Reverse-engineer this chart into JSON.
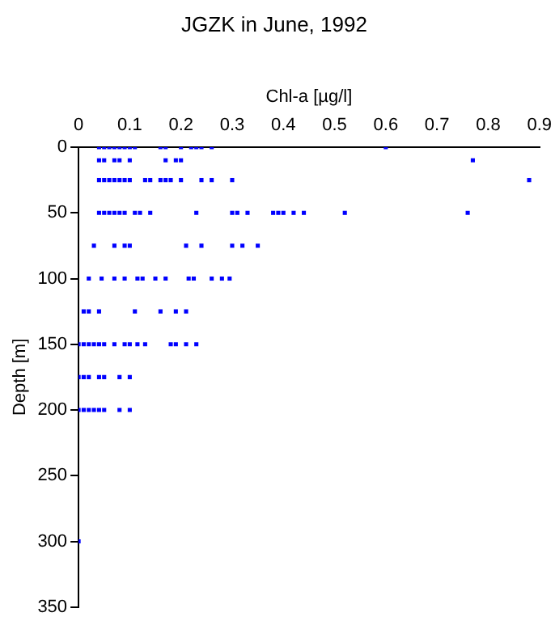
{
  "chart_data": {
    "type": "scatter",
    "title": "JGZK in June, 1992",
    "xlabel": "Chl-a [µg/l]",
    "ylabel": "Depth [m]",
    "color": "#0000ff",
    "marker": "square",
    "grid": false,
    "x": [
      0.04,
      0.05,
      0.06,
      0.07,
      0.08,
      0.09,
      0.1,
      0.11,
      0.16,
      0.17,
      0.2,
      0.22,
      0.23,
      0.24,
      0.26,
      0.6,
      0.04,
      0.05,
      0.07,
      0.08,
      0.1,
      0.17,
      0.19,
      0.2,
      0.77,
      0.04,
      0.05,
      0.06,
      0.07,
      0.08,
      0.09,
      0.1,
      0.13,
      0.14,
      0.16,
      0.17,
      0.18,
      0.2,
      0.24,
      0.26,
      0.3,
      0.88,
      0.04,
      0.05,
      0.06,
      0.07,
      0.08,
      0.09,
      0.11,
      0.12,
      0.14,
      0.23,
      0.3,
      0.31,
      0.33,
      0.38,
      0.39,
      0.4,
      0.42,
      0.44,
      0.52,
      0.76,
      0.03,
      0.07,
      0.09,
      0.1,
      0.21,
      0.24,
      0.3,
      0.32,
      0.35,
      0.02,
      0.045,
      0.07,
      0.09,
      0.115,
      0.125,
      0.15,
      0.17,
      0.215,
      0.225,
      0.26,
      0.28,
      0.295,
      0.01,
      0.02,
      0.04,
      0.11,
      0.16,
      0.19,
      0.21,
      0,
      0.01,
      0.02,
      0.03,
      0.04,
      0.05,
      0.07,
      0.09,
      0.1,
      0.115,
      0.13,
      0.18,
      0.19,
      0.21,
      0.23,
      0,
      0.01,
      0.02,
      0.04,
      0.05,
      0.08,
      0.1,
      0,
      0.01,
      0.02,
      0.03,
      0.04,
      0.05,
      0.08,
      0.1,
      0
    ],
    "values": [
      0,
      0,
      0,
      0,
      0,
      0,
      0,
      0,
      0,
      0,
      0,
      0,
      0,
      0,
      0,
      0,
      10,
      10,
      10,
      10,
      10,
      10,
      10,
      10,
      10,
      25,
      25,
      25,
      25,
      25,
      25,
      25,
      25,
      25,
      25,
      25,
      25,
      25,
      25,
      25,
      25,
      25,
      50,
      50,
      50,
      50,
      50,
      50,
      50,
      50,
      50,
      50,
      50,
      50,
      50,
      50,
      50,
      50,
      50,
      50,
      50,
      50,
      75,
      75,
      75,
      75,
      75,
      75,
      75,
      75,
      75,
      100,
      100,
      100,
      100,
      100,
      100,
      100,
      100,
      100,
      100,
      100,
      100,
      100,
      125,
      125,
      125,
      125,
      125,
      125,
      125,
      150,
      150,
      150,
      150,
      150,
      150,
      150,
      150,
      150,
      150,
      150,
      150,
      150,
      150,
      150,
      175,
      175,
      175,
      175,
      175,
      175,
      175,
      200,
      200,
      200,
      200,
      200,
      200,
      200,
      200,
      300
    ],
    "xlim": [
      0,
      0.9
    ],
    "xticks": [
      0,
      0.1,
      0.2,
      0.3,
      0.4,
      0.5,
      0.6,
      0.7,
      0.8,
      0.9
    ],
    "ylim": [
      350,
      0
    ],
    "yticks": [
      0,
      50,
      100,
      150,
      200,
      250,
      300,
      350
    ]
  }
}
